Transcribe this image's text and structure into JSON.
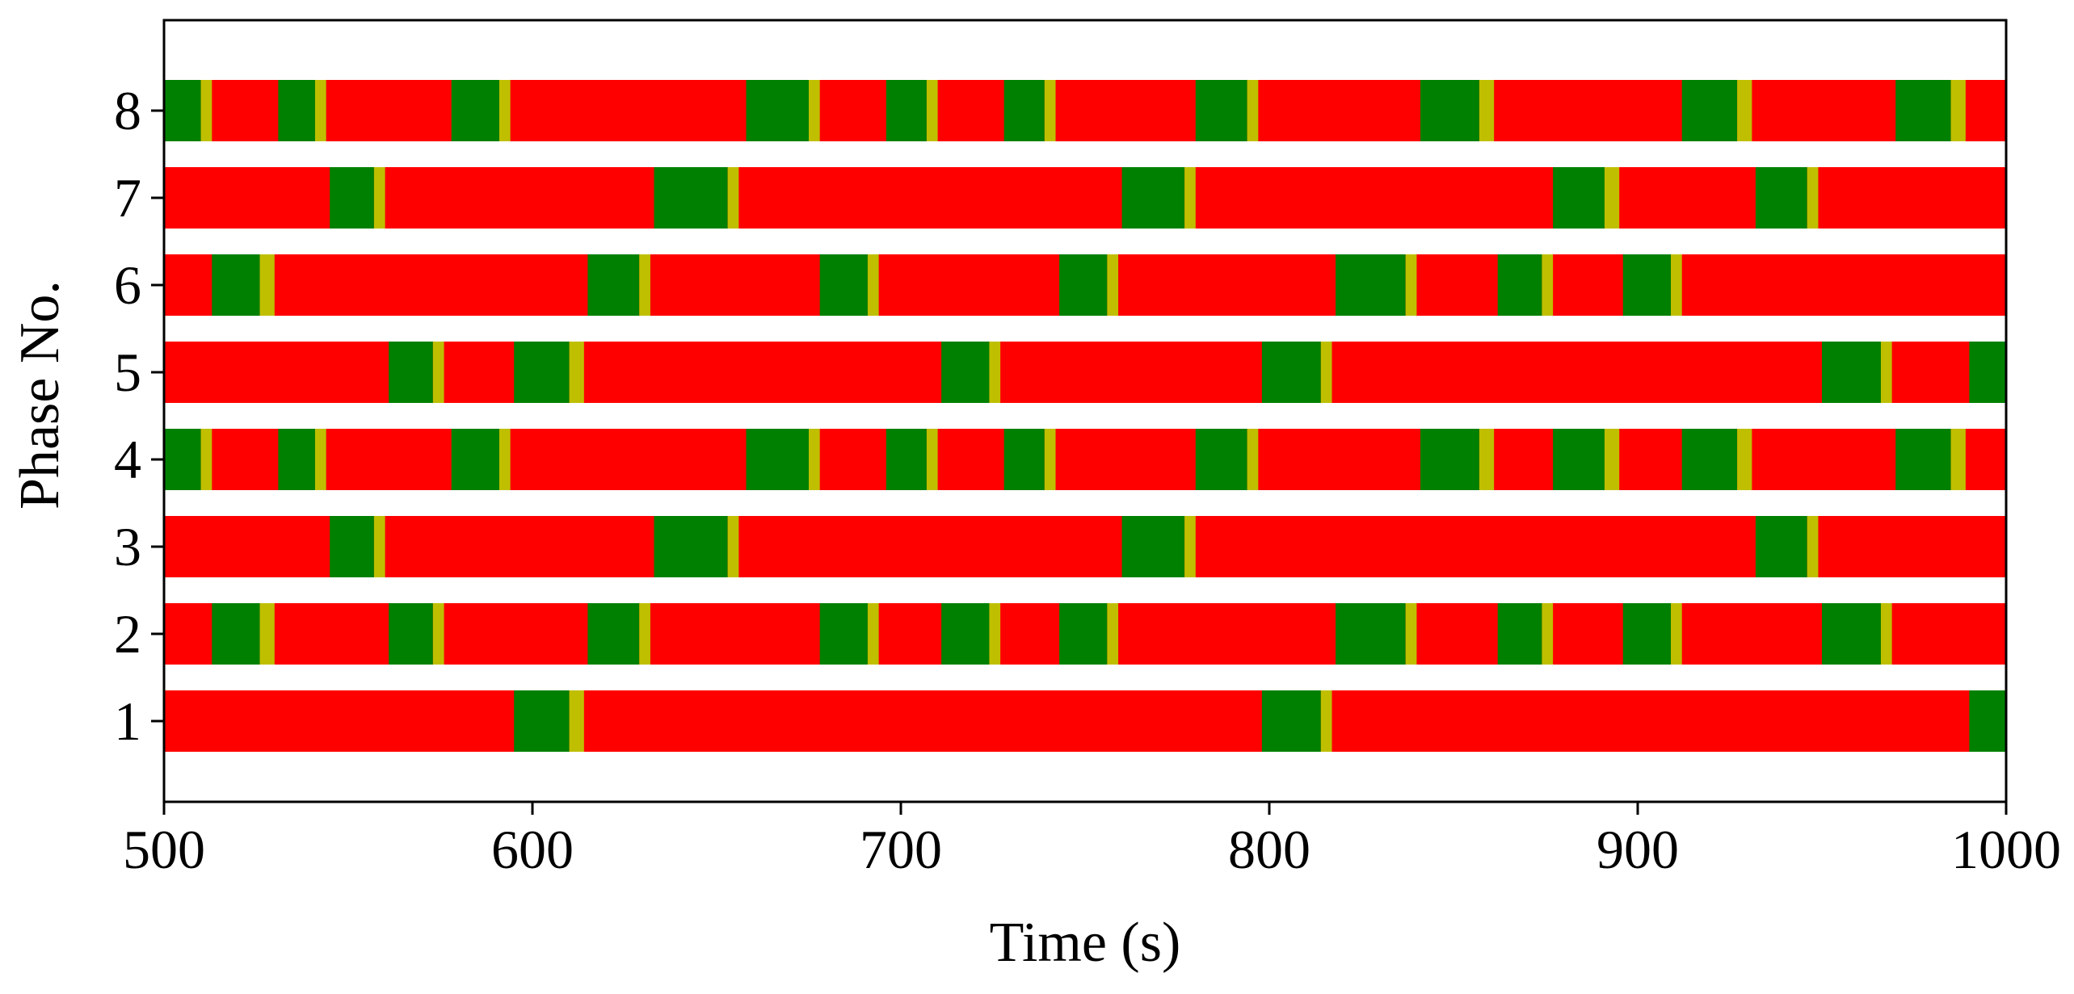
{
  "chart_data": {
    "type": "timeline",
    "xlabel": "Time (s)",
    "ylabel": "Phase No.",
    "xlim": [
      500,
      1000
    ],
    "x_ticks": [
      "500",
      "600",
      "700",
      "800",
      "900",
      "1000"
    ],
    "y_ticks": [
      "1",
      "2",
      "3",
      "4",
      "5",
      "6",
      "7",
      "8"
    ],
    "colors": {
      "red": "#ff0000",
      "green": "#008000",
      "yellow": "#bfbf00"
    },
    "legend": "none",
    "grid": false,
    "phases": [
      {
        "label": "1",
        "green_intervals": [
          [
            595,
            610
          ],
          [
            798,
            814
          ],
          [
            990,
            1000
          ]
        ],
        "yellow_intervals": [
          [
            610,
            614
          ],
          [
            814,
            817
          ]
        ]
      },
      {
        "label": "2",
        "green_intervals": [
          [
            513,
            526
          ],
          [
            561,
            573
          ],
          [
            615,
            629
          ],
          [
            678,
            691
          ],
          [
            711,
            724
          ],
          [
            743,
            756
          ],
          [
            818,
            837
          ],
          [
            862,
            874
          ],
          [
            896,
            909
          ],
          [
            950,
            966
          ]
        ],
        "yellow_intervals": [
          [
            526,
            530
          ],
          [
            573,
            576
          ],
          [
            629,
            632
          ],
          [
            691,
            694
          ],
          [
            724,
            727
          ],
          [
            756,
            759
          ],
          [
            837,
            840
          ],
          [
            874,
            877
          ],
          [
            909,
            912
          ],
          [
            966,
            969
          ]
        ]
      },
      {
        "label": "3",
        "green_intervals": [
          [
            545,
            557
          ],
          [
            633,
            653
          ],
          [
            760,
            777
          ],
          [
            932,
            946
          ]
        ],
        "yellow_intervals": [
          [
            557,
            560
          ],
          [
            653,
            656
          ],
          [
            777,
            780
          ],
          [
            946,
            949
          ]
        ]
      },
      {
        "label": "4",
        "green_intervals": [
          [
            500,
            510
          ],
          [
            531,
            541
          ],
          [
            578,
            591
          ],
          [
            658,
            675
          ],
          [
            696,
            707
          ],
          [
            728,
            739
          ],
          [
            780,
            794
          ],
          [
            841,
            857
          ],
          [
            877,
            891
          ],
          [
            912,
            927
          ],
          [
            970,
            985
          ]
        ],
        "yellow_intervals": [
          [
            510,
            513
          ],
          [
            541,
            544
          ],
          [
            591,
            594
          ],
          [
            675,
            678
          ],
          [
            707,
            710
          ],
          [
            739,
            742
          ],
          [
            794,
            797
          ],
          [
            857,
            861
          ],
          [
            891,
            895
          ],
          [
            927,
            931
          ],
          [
            985,
            989
          ]
        ]
      },
      {
        "label": "5",
        "green_intervals": [
          [
            561,
            573
          ],
          [
            595,
            610
          ],
          [
            711,
            724
          ],
          [
            798,
            814
          ],
          [
            950,
            966
          ],
          [
            990,
            1000
          ]
        ],
        "yellow_intervals": [
          [
            573,
            576
          ],
          [
            610,
            614
          ],
          [
            724,
            727
          ],
          [
            814,
            817
          ],
          [
            966,
            969
          ]
        ]
      },
      {
        "label": "6",
        "green_intervals": [
          [
            513,
            526
          ],
          [
            615,
            629
          ],
          [
            678,
            691
          ],
          [
            743,
            756
          ],
          [
            818,
            837
          ],
          [
            862,
            874
          ],
          [
            896,
            909
          ]
        ],
        "yellow_intervals": [
          [
            526,
            530
          ],
          [
            629,
            632
          ],
          [
            691,
            694
          ],
          [
            756,
            759
          ],
          [
            837,
            840
          ],
          [
            874,
            877
          ],
          [
            909,
            912
          ]
        ]
      },
      {
        "label": "7",
        "green_intervals": [
          [
            545,
            557
          ],
          [
            633,
            653
          ],
          [
            760,
            777
          ],
          [
            877,
            891
          ],
          [
            932,
            946
          ]
        ],
        "yellow_intervals": [
          [
            557,
            560
          ],
          [
            653,
            656
          ],
          [
            777,
            780
          ],
          [
            891,
            895
          ],
          [
            946,
            949
          ]
        ]
      },
      {
        "label": "8",
        "green_intervals": [
          [
            500,
            510
          ],
          [
            531,
            541
          ],
          [
            578,
            591
          ],
          [
            658,
            675
          ],
          [
            696,
            707
          ],
          [
            728,
            739
          ],
          [
            780,
            794
          ],
          [
            841,
            857
          ],
          [
            912,
            927
          ],
          [
            970,
            985
          ]
        ],
        "yellow_intervals": [
          [
            510,
            513
          ],
          [
            541,
            544
          ],
          [
            591,
            594
          ],
          [
            675,
            678
          ],
          [
            707,
            710
          ],
          [
            739,
            742
          ],
          [
            794,
            797
          ],
          [
            857,
            861
          ],
          [
            927,
            931
          ],
          [
            985,
            989
          ]
        ]
      }
    ]
  }
}
